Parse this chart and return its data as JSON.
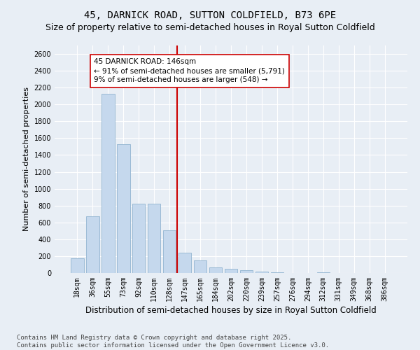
{
  "title": "45, DARNICK ROAD, SUTTON COLDFIELD, B73 6PE",
  "subtitle": "Size of property relative to semi-detached houses in Royal Sutton Coldfield",
  "xlabel": "Distribution of semi-detached houses by size in Royal Sutton Coldfield",
  "ylabel": "Number of semi-detached properties",
  "categories": [
    "18sqm",
    "36sqm",
    "55sqm",
    "73sqm",
    "92sqm",
    "110sqm",
    "128sqm",
    "147sqm",
    "165sqm",
    "184sqm",
    "202sqm",
    "220sqm",
    "239sqm",
    "257sqm",
    "276sqm",
    "294sqm",
    "312sqm",
    "331sqm",
    "349sqm",
    "368sqm",
    "386sqm"
  ],
  "values": [
    175,
    670,
    2130,
    1530,
    820,
    820,
    510,
    240,
    150,
    70,
    50,
    30,
    15,
    5,
    0,
    0,
    5,
    0,
    0,
    0,
    0
  ],
  "bar_color": "#c5d8ed",
  "bar_edge_color": "#91b4d0",
  "vline_x_index": 6.5,
  "vline_color": "#cc0000",
  "annotation_text": "45 DARNICK ROAD: 146sqm\n← 91% of semi-detached houses are smaller (5,791)\n9% of semi-detached houses are larger (548) →",
  "annotation_box_color": "#ffffff",
  "annotation_box_edge": "#cc0000",
  "ylim": [
    0,
    2700
  ],
  "yticks": [
    0,
    200,
    400,
    600,
    800,
    1000,
    1200,
    1400,
    1600,
    1800,
    2000,
    2200,
    2400,
    2600
  ],
  "bg_color": "#e8eef5",
  "plot_bg_color": "#e8eef5",
  "footer_text": "Contains HM Land Registry data © Crown copyright and database right 2025.\nContains public sector information licensed under the Open Government Licence v3.0.",
  "title_fontsize": 10,
  "subtitle_fontsize": 9,
  "xlabel_fontsize": 8.5,
  "ylabel_fontsize": 8,
  "tick_fontsize": 7,
  "footer_fontsize": 6.5,
  "ann_fontsize": 7.5
}
